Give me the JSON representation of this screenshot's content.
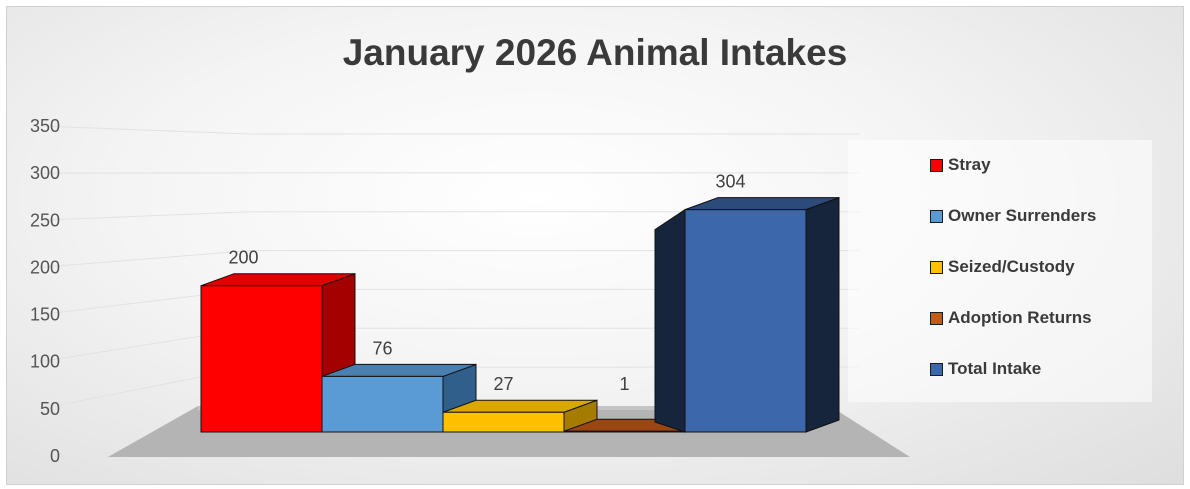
{
  "chart_data": {
    "type": "bar",
    "title": "January 2026 Animal Intakes",
    "categories": [
      "Stray",
      "Owner Surrenders",
      "Seized/Custody",
      "Adoption Returns",
      "Total Intake"
    ],
    "values": [
      200,
      76,
      27,
      1,
      304
    ],
    "colors": [
      "#ff0000",
      "#5b9bd5",
      "#ffc000",
      "#c55a11",
      "#3d67ab"
    ],
    "side_colors": [
      "#a50000",
      "#2f5f8a",
      "#a67c00",
      "#6e300a",
      "#16243c"
    ],
    "top_colors": [
      "#e00000",
      "#4a7fb0",
      "#d9a800",
      "#9b4510",
      "#2c4a7a"
    ],
    "ylim": [
      0,
      350
    ],
    "yticks": [
      0,
      50,
      100,
      150,
      200,
      250,
      300,
      350
    ],
    "legend_position": "right",
    "grid": true,
    "three_d": true
  }
}
